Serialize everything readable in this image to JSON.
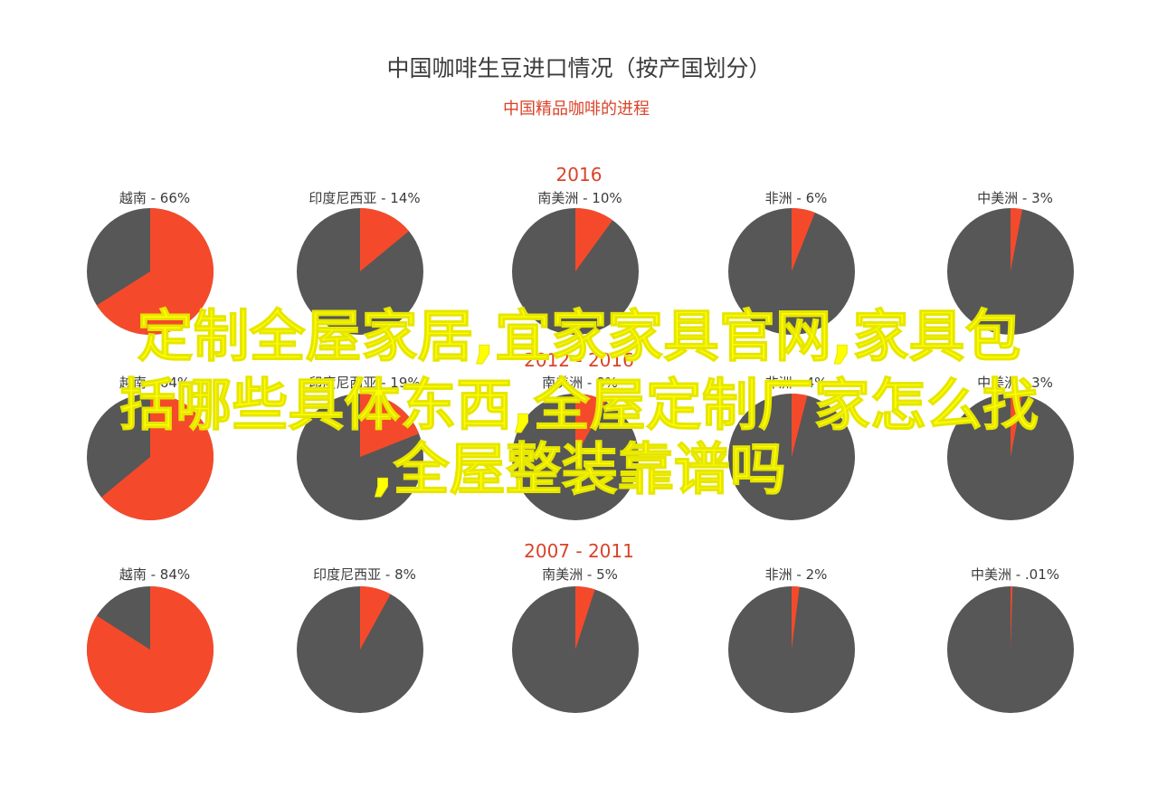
{
  "colors": {
    "highlight": "#f44a2b",
    "rest": "#575757",
    "title": "#3c3c3c",
    "accent": "#d9432a",
    "overlay": "#ffff00"
  },
  "overlay": {
    "line1": "定制全屋家居,宜家家具官网,家具包",
    "line2": "括哪些具体东西,全屋定制厂家怎么找",
    "line3": ",全屋整装靠谱吗"
  },
  "chart_data": {
    "type": "pie",
    "title": "中国咖啡生豆进口情况（按产国划分）",
    "subtitle": "中国精品咖啡的进程",
    "groups": [
      {
        "period": "2016",
        "slices": [
          {
            "label": "越南 - 66%",
            "value": 66
          },
          {
            "label": "印度尼西亚 - 14%",
            "value": 14
          },
          {
            "label": "南美洲  - 10%",
            "value": 10
          },
          {
            "label": "非洲 - 6%",
            "value": 6
          },
          {
            "label": "中美洲   - 3%",
            "value": 3
          }
        ]
      },
      {
        "period": "2012 - 2016",
        "slices": [
          {
            "label": "越南 - 64%",
            "value": 64
          },
          {
            "label": "印度尼西亚 - 19%",
            "value": 19
          },
          {
            "label": "南美洲 - 8%",
            "value": 8
          },
          {
            "label": "非洲 - 4%",
            "value": 4
          },
          {
            "label": "中美洲 - 3%",
            "value": 3
          }
        ]
      },
      {
        "period": "2007 - 2011",
        "slices": [
          {
            "label": "越南 - 84%",
            "value": 84
          },
          {
            "label": "印度尼西亚 - 8%",
            "value": 8
          },
          {
            "label": "南美洲  - 5%",
            "value": 5
          },
          {
            "label": "非洲  - 2%",
            "value": 2
          },
          {
            "label": "中美洲   - .01%",
            "value": 0.01
          }
        ]
      }
    ]
  }
}
